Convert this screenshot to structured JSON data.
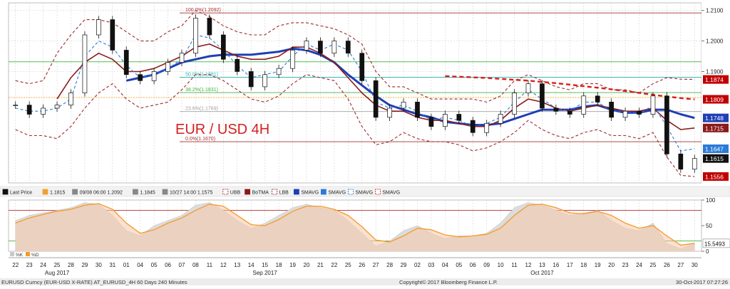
{
  "chart_data": [
    {
      "type": "line",
      "name_label": "EUR / USD 4H",
      "ylim": [
        1.1535,
        1.2125
      ],
      "yticks": [
        1.21,
        1.2,
        1.19
      ],
      "ytick_labels": [
        "1.2100",
        "1.2000",
        "1.1900"
      ],
      "grid": true,
      "date_ticks": [
        "22",
        "23",
        "24",
        "25",
        "28",
        "29",
        "30",
        "31",
        "01",
        "04",
        "05",
        "06",
        "07",
        "08",
        "11",
        "12",
        "13",
        "14",
        "15",
        "18",
        "19",
        "20",
        "21",
        "22",
        "25",
        "26",
        "27",
        "28",
        "29",
        "02",
        "03",
        "04",
        "05",
        "06",
        "09",
        "10",
        "11",
        "12",
        "13",
        "16",
        "17",
        "18",
        "19",
        "20",
        "23",
        "24",
        "25",
        "26",
        "27",
        "30"
      ],
      "month_labels": [
        {
          "label": "Aug 2017",
          "tick_index": 3
        },
        {
          "label": "Sep 2017",
          "tick_index": 18
        },
        {
          "label": "Oct 2017",
          "tick_index": 38
        }
      ],
      "fib_levels": [
        {
          "label": "100.0%(1.2092)",
          "value": 1.2092,
          "color": "#a03030"
        },
        {
          "label": "50.0%(1.1881)",
          "value": 1.1881,
          "color": "#30b0b0"
        },
        {
          "label": "38.2%(1.1831)",
          "value": 1.1831,
          "color": "#40b040"
        },
        {
          "label": "23.6%(1.1769)",
          "value": 1.1769,
          "color": "#a0a0a0"
        },
        {
          "label": "0.0%(1.1670)",
          "value": 1.167,
          "color": "#a03030"
        }
      ],
      "extra_levels": [
        {
          "value": 1.1932,
          "color": "#50c050"
        },
        {
          "value": 1.1815,
          "color": "#f0a030",
          "dashed": true
        }
      ],
      "price_tags": [
        {
          "label": "1.1874",
          "value": 1.1874,
          "color": "#c00000"
        },
        {
          "label": "1.1809",
          "value": 1.1809,
          "color": "#c00000"
        },
        {
          "label": "1.1748",
          "value": 1.1748,
          "color": "#1f3fb5"
        },
        {
          "label": "1.1715",
          "value": 1.1715,
          "color": "#8b1a1a"
        },
        {
          "label": "1.1647",
          "value": 1.1647,
          "color": "#2b7bd8"
        },
        {
          "label": "1.1615",
          "value": 1.1615,
          "color": "#111111"
        },
        {
          "label": "1.1556",
          "value": 1.1556,
          "color": "#c00000"
        }
      ],
      "series": [
        {
          "name": "Last Price",
          "color": "#111111",
          "style": "candles",
          "values": [
            1.179,
            1.176,
            1.178,
            1.179,
            1.183,
            1.202,
            1.207,
            1.197,
            1.189,
            1.187,
            1.19,
            1.193,
            1.196,
            1.2075,
            1.202,
            1.194,
            1.19,
            1.185,
            1.189,
            1.191,
            1.197,
            1.2,
            1.196,
            1.2,
            1.196,
            1.187,
            1.175,
            1.178,
            1.18,
            1.175,
            1.172,
            1.176,
            1.174,
            1.17,
            1.173,
            1.176,
            1.183,
            1.186,
            1.178,
            1.177,
            1.176,
            1.182,
            1.18,
            1.175,
            1.177,
            1.176,
            1.182,
            1.163,
            1.158,
            1.1615
          ]
        },
        {
          "name": "SMAVG",
          "color": "#1f3fb5",
          "style": "thick",
          "values": [
            null,
            null,
            null,
            null,
            null,
            null,
            null,
            null,
            1.187,
            1.188,
            1.189,
            1.191,
            1.193,
            1.194,
            1.195,
            1.1955,
            1.1955,
            1.1955,
            1.196,
            1.1965,
            1.1975,
            1.197,
            1.1955,
            1.193,
            1.189,
            1.1855,
            1.182,
            1.179,
            1.1775,
            1.176,
            1.175,
            1.1735,
            1.173,
            1.1725,
            1.1725,
            1.173,
            1.1745,
            1.176,
            1.1775,
            1.1775,
            1.1775,
            1.1785,
            1.179,
            1.1775,
            1.1765,
            1.1765,
            1.1775,
            1.1775,
            1.176,
            1.1748
          ]
        },
        {
          "name": "BoTMA",
          "color": "#8b1a1a",
          "style": "solid",
          "values": [
            null,
            null,
            null,
            1.181,
            1.188,
            1.193,
            1.196,
            1.194,
            1.19,
            1.19,
            1.191,
            1.193,
            1.195,
            1.198,
            1.199,
            1.197,
            1.195,
            1.194,
            1.194,
            1.195,
            1.198,
            1.198,
            1.196,
            1.193,
            1.188,
            1.183,
            1.179,
            1.177,
            1.177,
            1.175,
            1.174,
            1.174,
            1.173,
            1.172,
            1.172,
            1.174,
            1.178,
            1.181,
            1.18,
            1.178,
            1.177,
            1.178,
            1.179,
            1.178,
            1.177,
            1.177,
            1.178,
            1.174,
            1.171,
            1.1715
          ]
        },
        {
          "name": "SMAVG",
          "color": "#2b7bd8",
          "style": "dashed",
          "values": [
            1.178,
            1.177,
            1.177,
            1.178,
            1.181,
            1.195,
            1.2,
            1.198,
            1.192,
            1.188,
            1.189,
            1.191,
            1.194,
            1.202,
            1.201,
            1.197,
            1.192,
            1.188,
            1.189,
            1.19,
            1.195,
            1.199,
            1.197,
            1.199,
            1.197,
            1.19,
            1.18,
            1.178,
            1.179,
            1.177,
            1.174,
            1.175,
            1.174,
            1.172,
            1.173,
            1.175,
            1.18,
            1.184,
            1.181,
            1.178,
            1.177,
            1.18,
            1.18,
            1.177,
            1.177,
            1.176,
            1.179,
            1.172,
            1.164,
            1.1647
          ]
        },
        {
          "name": "UBB",
          "color": "#a02828",
          "style": "dashed",
          "values": [
            1.187,
            1.186,
            1.187,
            1.196,
            1.202,
            1.207,
            1.207,
            1.206,
            1.203,
            1.2,
            1.2,
            1.203,
            1.205,
            1.21,
            1.208,
            1.205,
            1.203,
            1.202,
            1.202,
            1.205,
            1.206,
            1.206,
            1.205,
            1.204,
            1.202,
            1.199,
            1.19,
            1.185,
            1.185,
            1.183,
            1.181,
            1.181,
            1.181,
            1.181,
            1.18,
            1.182,
            1.187,
            1.189,
            1.187,
            1.185,
            1.184,
            1.186,
            1.186,
            1.184,
            1.184,
            1.183,
            1.186,
            1.188,
            1.1875,
            1.1874
          ]
        },
        {
          "name": "LBB",
          "color": "#a02828",
          "style": "dashed",
          "values": [
            1.171,
            1.169,
            1.169,
            1.168,
            1.172,
            1.178,
            1.183,
            1.186,
            1.181,
            1.178,
            1.179,
            1.18,
            1.184,
            1.189,
            1.189,
            1.187,
            1.184,
            1.181,
            1.18,
            1.182,
            1.186,
            1.189,
            1.188,
            1.187,
            1.181,
            1.172,
            1.166,
            1.167,
            1.17,
            1.168,
            1.167,
            1.167,
            1.166,
            1.164,
            1.165,
            1.167,
            1.17,
            1.174,
            1.171,
            1.169,
            1.168,
            1.17,
            1.171,
            1.169,
            1.169,
            1.168,
            1.17,
            1.162,
            1.156,
            1.1556
          ]
        },
        {
          "name": "Trend",
          "color": "#d81e1e",
          "style": "bold-dashed",
          "values": [
            null,
            null,
            null,
            null,
            null,
            null,
            null,
            null,
            null,
            null,
            null,
            null,
            null,
            null,
            null,
            null,
            null,
            null,
            null,
            null,
            null,
            null,
            null,
            null,
            null,
            null,
            null,
            null,
            null,
            null,
            null,
            1.1885,
            1.1883,
            1.1881,
            1.1879,
            1.1876,
            1.1873,
            1.187,
            1.1866,
            1.1862,
            1.1857,
            1.1852,
            1.1847,
            1.1842,
            1.1836,
            1.183,
            1.1824,
            1.1818,
            1.1813,
            1.1809
          ]
        }
      ]
    },
    {
      "type": "area",
      "ylim": [
        0,
        100
      ],
      "yticks": [
        100,
        50,
        0
      ],
      "ytick_labels": [
        "100",
        "50",
        "0"
      ],
      "levels": [
        80,
        20
      ],
      "value_tag": "15.5493",
      "series": [
        {
          "name": "%K",
          "color": "#c8c8c8",
          "values": [
            60,
            70,
            75,
            80,
            85,
            95,
            92,
            70,
            40,
            30,
            50,
            60,
            70,
            90,
            95,
            80,
            60,
            45,
            55,
            70,
            85,
            92,
            85,
            80,
            60,
            35,
            10,
            20,
            40,
            50,
            35,
            25,
            30,
            30,
            35,
            55,
            85,
            95,
            90,
            80,
            70,
            75,
            80,
            60,
            45,
            40,
            55,
            15,
            5,
            15
          ]
        },
        {
          "name": "%D",
          "color": "#f59a2a",
          "values": [
            55,
            65,
            72,
            78,
            82,
            90,
            93,
            82,
            55,
            35,
            42,
            55,
            65,
            80,
            92,
            88,
            70,
            52,
            50,
            62,
            78,
            88,
            88,
            82,
            70,
            48,
            22,
            18,
            30,
            45,
            42,
            32,
            28,
            30,
            33,
            45,
            70,
            90,
            92,
            85,
            75,
            73,
            78,
            70,
            55,
            45,
            50,
            30,
            12,
            15.5
          ]
        }
      ]
    }
  ],
  "legend": {
    "items": [
      {
        "label": "Last Price",
        "value": "",
        "color": "#111111",
        "style": "candles"
      },
      {
        "label": "1.1815",
        "value": "",
        "color": "#f0a030",
        "style": "box"
      },
      {
        "label": "09/08 06:00 1.2092",
        "value": "",
        "color": "#888888",
        "style": "marker"
      },
      {
        "label": "1.1845",
        "value": "",
        "color": "#888888",
        "style": "plus"
      },
      {
        "label": "10/27 14:00 1.1575",
        "value": "",
        "color": "#888888",
        "style": "marker"
      },
      {
        "label": "UBB",
        "value": "",
        "color": "#a02828",
        "style": "dash"
      },
      {
        "label": "BoTMA",
        "value": "",
        "color": "#8b1a1a",
        "style": "box"
      },
      {
        "label": "LBB",
        "value": "",
        "color": "#a02828",
        "style": "dash"
      },
      {
        "label": "SMAVG",
        "value": "",
        "color": "#1f3fb5",
        "style": "box"
      },
      {
        "label": "SMAVG",
        "value": "",
        "color": "#2b7bd8",
        "style": "box"
      },
      {
        "label": "SMAVG",
        "value": "",
        "color": "#2b7bd8",
        "style": "dash"
      },
      {
        "label": "SMAVG",
        "value": "",
        "color": "#d81e1e",
        "style": "dash"
      }
    ]
  },
  "sub_legend": [
    "%K",
    "%D"
  ],
  "footer": {
    "left": "EURUSD Curncy (EUR-USD X-RATE) AT_EURUSD_4H 60 Days 240 Minutes",
    "center": "Copyright© 2017 Bloomberg Finance L.P.",
    "right": "30-Oct-2017 07:27:26"
  },
  "colors": {
    "grid": "#c8c8c8",
    "title": "#d42020"
  }
}
